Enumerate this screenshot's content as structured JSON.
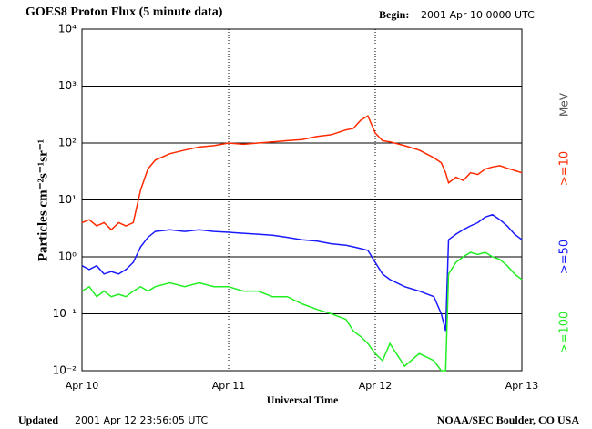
{
  "chart_data": {
    "type": "line",
    "title": "GOES8 Proton Flux (5 minute data)",
    "begin_label": "Begin:",
    "begin_value": "2001 Apr 10 0000 UTC",
    "ylabel": "Particles cm⁻²s⁻¹sr⁻¹",
    "xlabel": "Universal Time",
    "units_label": "MeV",
    "updated_label": "Updated",
    "updated_value": "2001 Apr 12 23:56:05 UTC",
    "credit": "NOAA/SEC Boulder, CO USA",
    "log_y": true,
    "grid": true,
    "xlim": [
      0,
      3
    ],
    "xticks": [
      {
        "value": 0,
        "label": "Apr 10"
      },
      {
        "value": 1,
        "label": "Apr 11"
      },
      {
        "value": 2,
        "label": "Apr 12"
      },
      {
        "value": 3,
        "label": "Apr 13"
      }
    ],
    "ylim": [
      0.01,
      10000
    ],
    "yticks": [
      {
        "value": 0.01,
        "label": "10⁻²"
      },
      {
        "value": 0.1,
        "label": "10⁻¹"
      },
      {
        "value": 1,
        "label": "10⁰"
      },
      {
        "value": 10,
        "label": "10¹"
      },
      {
        "value": 100,
        "label": "10²"
      },
      {
        "value": 1000,
        "label": "10³"
      },
      {
        "value": 10000,
        "label": "10⁴"
      }
    ],
    "x": [
      0,
      0.05,
      0.1,
      0.15,
      0.2,
      0.25,
      0.3,
      0.35,
      0.4,
      0.45,
      0.5,
      0.6,
      0.7,
      0.8,
      0.9,
      1.0,
      1.1,
      1.2,
      1.3,
      1.4,
      1.5,
      1.6,
      1.7,
      1.8,
      1.85,
      1.9,
      1.95,
      2.0,
      2.05,
      2.1,
      2.2,
      2.3,
      2.4,
      2.45,
      2.48,
      2.5,
      2.55,
      2.6,
      2.65,
      2.7,
      2.75,
      2.8,
      2.85,
      2.9,
      2.95,
      3.0
    ],
    "series": [
      {
        "name": ">=10",
        "color": "#ff2a00",
        "values": [
          4,
          4.5,
          3.5,
          4,
          3,
          4,
          3.5,
          4,
          15,
          35,
          50,
          65,
          75,
          85,
          90,
          100,
          95,
          100,
          105,
          110,
          115,
          130,
          140,
          170,
          180,
          250,
          300,
          150,
          110,
          105,
          90,
          75,
          55,
          45,
          30,
          20,
          25,
          22,
          30,
          28,
          35,
          38,
          40,
          36,
          33,
          30
        ]
      },
      {
        "name": ">=50",
        "color": "#1a1aff",
        "values": [
          0.7,
          0.6,
          0.7,
          0.5,
          0.55,
          0.5,
          0.6,
          0.8,
          1.5,
          2.2,
          2.8,
          3,
          2.8,
          3,
          2.8,
          2.7,
          2.6,
          2.5,
          2.4,
          2.2,
          2,
          1.9,
          1.7,
          1.6,
          1.5,
          1.4,
          1.3,
          0.8,
          0.5,
          0.4,
          0.3,
          0.25,
          0.2,
          0.1,
          0.05,
          2,
          2.5,
          3,
          3.5,
          4,
          5,
          5.5,
          4.5,
          3.5,
          2.5,
          2
        ]
      },
      {
        "name": ">=100",
        "color": "#22ee22",
        "values": [
          0.25,
          0.3,
          0.2,
          0.25,
          0.2,
          0.22,
          0.2,
          0.25,
          0.3,
          0.25,
          0.3,
          0.35,
          0.3,
          0.35,
          0.3,
          0.3,
          0.25,
          0.25,
          0.2,
          0.2,
          0.15,
          0.12,
          0.1,
          0.08,
          0.05,
          0.04,
          0.03,
          0.02,
          0.015,
          0.03,
          0.012,
          0.02,
          0.015,
          0.01,
          0.01,
          0.5,
          0.8,
          1,
          1.2,
          1.1,
          1.2,
          1,
          0.9,
          0.7,
          0.5,
          0.4
        ]
      }
    ]
  }
}
